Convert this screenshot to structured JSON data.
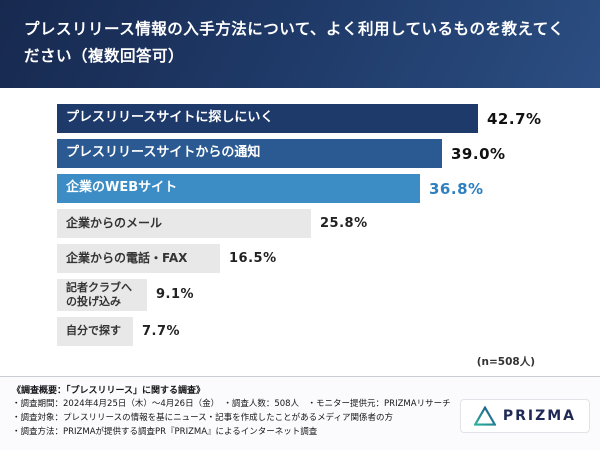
{
  "header": {
    "title": "プレスリリース情報の入手方法について、よく利用しているものを教えてください（複数回答可）"
  },
  "chart_data": {
    "type": "bar",
    "orientation": "horizontal",
    "title": "プレスリリース情報の入手方法について、よく利用しているものを教えてください（複数回答可）",
    "categories": [
      "プレスリリースサイトに探しにいく",
      "プレスリリースサイトからの通知",
      "企業のWEBサイト",
      "企業からのメール",
      "企業からの電話・FAX",
      "記者クラブへの投げ込み",
      "自分で探す"
    ],
    "values": [
      42.7,
      39.0,
      36.8,
      25.8,
      16.5,
      9.1,
      7.7
    ],
    "value_labels": [
      "42.7%",
      "39.0%",
      "36.8%",
      "25.8%",
      "16.5%",
      "9.1%",
      "7.7%"
    ],
    "bar_colors": [
      "#1d3a6b",
      "#2b5a92",
      "#3c8dc5",
      "#e8e8e9",
      "#e8e8e9",
      "#e8e8e9",
      "#e8e8e9"
    ],
    "label_colors": [
      "#ffffff",
      "#ffffff",
      "#ffffff",
      "#333333",
      "#333333",
      "#333333",
      "#333333"
    ],
    "pct_colors": [
      "#111111",
      "#111111",
      "#2f80c0",
      "#222222",
      "#222222",
      "#222222",
      "#222222"
    ],
    "xlim": [
      0,
      45
    ],
    "grid": false,
    "legend": false,
    "sample_note": "(n=508人)"
  },
  "footer": {
    "heading": "《調査概要：「プレスリリース」に関する調査》",
    "lines": [
      "・調査期間：2024年4月25日（木）〜4月26日（金）　・調査人数：508人　・モニター提供元：PRIZMAリサーチ",
      "・調査対象：プレスリリースの情報を基にニュース・記事を作成したことがあるメディア関係者の方",
      "・調査方法：PRIZMAが提供する調査PR『PRIZMA』によるインターネット調査"
    ]
  },
  "logo": {
    "text": "PRIZMA"
  }
}
